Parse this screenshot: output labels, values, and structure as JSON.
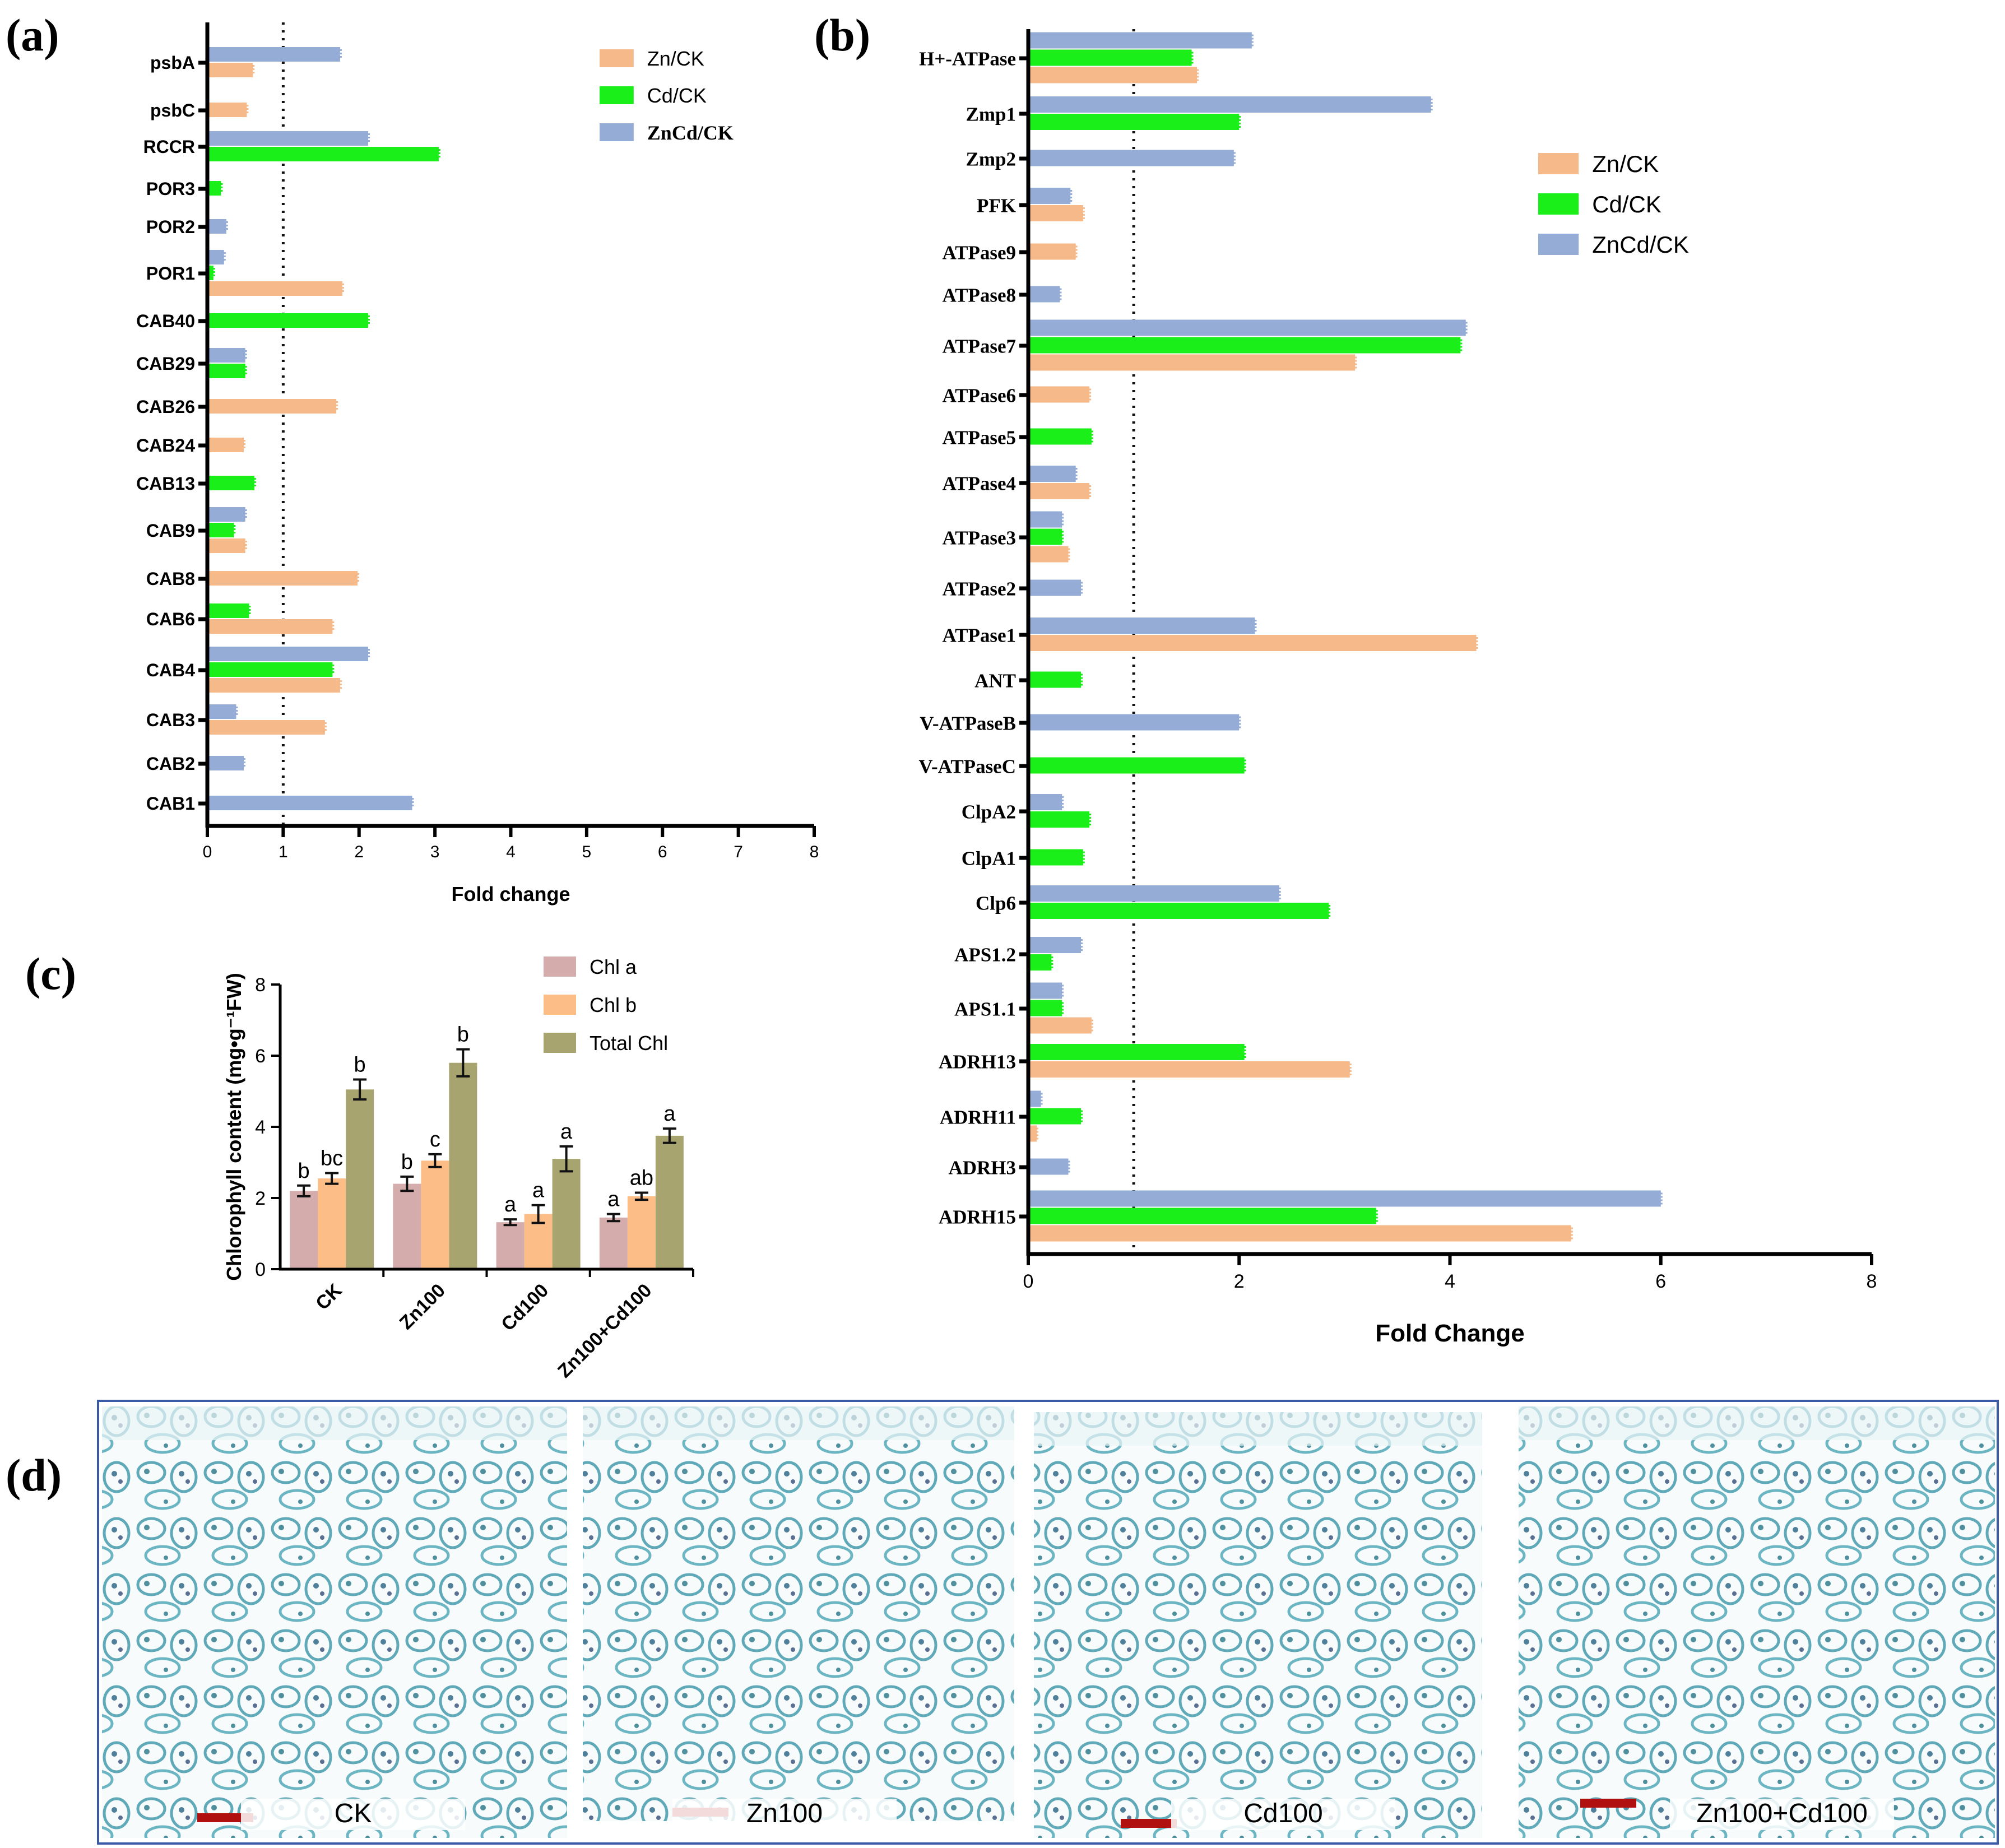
{
  "colors": {
    "zn": "#f5b98a",
    "cd": "#1aef1a",
    "zncd": "#94acd6",
    "chla": "#d4acac",
    "chlb": "#fdbd86",
    "total": "#a7a470",
    "scalebar": "#b01010",
    "frame": "#3a5aa8"
  },
  "chart_data": [
    {
      "id": "a",
      "panel_label": "(a)",
      "type": "bar",
      "orientation": "horizontal",
      "xlabel": "Fold change",
      "xlim": [
        0,
        8
      ],
      "xticks": [
        "0",
        "1",
        "2",
        "3",
        "4",
        "5",
        "6",
        "7",
        "8"
      ],
      "reference_line": 1,
      "legend": [
        "Zn/CK",
        "Cd/CK",
        "ZnCd/CK"
      ],
      "categories": [
        "psbA",
        "psbC",
        "RCCR",
        "POR3",
        "POR2",
        "POR1",
        "CAB40",
        "CAB29",
        "CAB26",
        "CAB24",
        "CAB13",
        "CAB9",
        "CAB8",
        "CAB6",
        "CAB4",
        "CAB3",
        "CAB2",
        "CAB1"
      ],
      "series": [
        {
          "name": "Zn/CK",
          "values": [
            0.6,
            0.52,
            null,
            null,
            null,
            1.78,
            null,
            null,
            1.7,
            0.48,
            null,
            0.5,
            1.98,
            1.65,
            1.75,
            1.55,
            null,
            null
          ]
        },
        {
          "name": "Cd/CK",
          "values": [
            null,
            null,
            3.05,
            0.18,
            null,
            0.08,
            2.12,
            0.5,
            null,
            null,
            0.62,
            0.35,
            null,
            0.55,
            1.65,
            null,
            null,
            null
          ]
        },
        {
          "name": "ZnCd/CK",
          "values": [
            1.75,
            null,
            2.12,
            null,
            0.25,
            0.22,
            null,
            0.5,
            null,
            null,
            null,
            0.5,
            null,
            null,
            2.12,
            0.38,
            0.48,
            2.7
          ]
        }
      ]
    },
    {
      "id": "b",
      "panel_label": "(b)",
      "type": "bar",
      "orientation": "horizontal",
      "xlabel": "Fold Change",
      "xlim": [
        0,
        8
      ],
      "xticks": [
        "0",
        "2",
        "4",
        "6",
        "8"
      ],
      "reference_line": 1,
      "legend": [
        "Zn/CK",
        "Cd/CK",
        "ZnCd/CK"
      ],
      "categories": [
        "H+-ATPase",
        "Zmp1",
        "Zmp2",
        "PFK",
        "ATPase9",
        "ATPase8",
        "ATPase7",
        "ATPase6",
        "ATPase5",
        "ATPase4",
        "ATPase3",
        "ATPase2",
        "ATPase1",
        "ANT",
        "V-ATPaseB",
        "V-ATPaseC",
        "ClpA2",
        "ClpA1",
        "Clp6",
        "APS1.2",
        "APS1.1",
        "ADRH13",
        "ADRH11",
        "ADRH3",
        "ADRH15"
      ],
      "series": [
        {
          "name": "Zn/CK",
          "values": [
            1.6,
            null,
            null,
            0.52,
            0.45,
            null,
            3.1,
            0.58,
            null,
            0.58,
            0.38,
            null,
            4.25,
            null,
            null,
            null,
            null,
            null,
            null,
            null,
            0.6,
            3.05,
            0.08,
            null,
            5.15
          ]
        },
        {
          "name": "Cd/CK",
          "values": [
            1.55,
            2.0,
            null,
            null,
            null,
            null,
            4.1,
            null,
            0.6,
            null,
            0.32,
            null,
            null,
            0.5,
            null,
            2.05,
            0.58,
            0.52,
            2.85,
            0.22,
            0.32,
            2.05,
            0.5,
            null,
            3.3
          ]
        },
        {
          "name": "ZnCd/CK",
          "values": [
            2.12,
            3.82,
            1.95,
            0.4,
            null,
            0.3,
            4.15,
            null,
            null,
            0.45,
            0.32,
            0.5,
            2.15,
            null,
            2.0,
            null,
            0.32,
            null,
            2.38,
            0.5,
            0.32,
            null,
            0.12,
            0.38,
            6.0
          ]
        }
      ]
    },
    {
      "id": "c",
      "panel_label": "(c)",
      "type": "bar",
      "orientation": "vertical",
      "ylabel": "Chlorophyll content (mg•g⁻¹FW)",
      "ylim": [
        0,
        8
      ],
      "yticks": [
        "0",
        "2",
        "4",
        "6",
        "8"
      ],
      "legend": [
        "Chl a",
        "Chl b",
        "Total Chl"
      ],
      "categories": [
        "CK",
        "Zn100",
        "Cd100",
        "Zn100+Cd100"
      ],
      "series": [
        {
          "name": "Chl a",
          "values": [
            2.2,
            2.4,
            1.32,
            1.45
          ],
          "errors": [
            0.15,
            0.2,
            0.08,
            0.1
          ],
          "letters": [
            "b",
            "b",
            "a",
            "a"
          ]
        },
        {
          "name": "Chl b",
          "values": [
            2.55,
            3.05,
            1.55,
            2.05
          ],
          "errors": [
            0.15,
            0.18,
            0.25,
            0.1
          ],
          "letters": [
            "bc",
            "c",
            "a",
            "ab"
          ]
        },
        {
          "name": "Total Chl",
          "values": [
            5.05,
            5.8,
            3.1,
            3.75
          ],
          "errors": [
            0.28,
            0.38,
            0.35,
            0.2
          ],
          "letters": [
            "b",
            "b",
            "a",
            "a"
          ]
        }
      ]
    }
  ],
  "panel_d": {
    "label": "(d)",
    "captions": [
      "CK",
      "Zn100",
      "Cd100",
      "Zn100+Cd100"
    ]
  }
}
